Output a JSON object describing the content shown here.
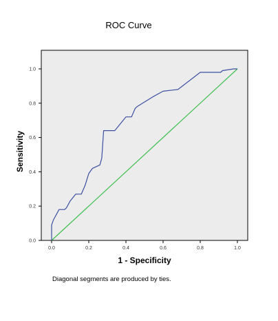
{
  "chart_data": {
    "type": "line",
    "title": "ROC Curve",
    "xlabel": "1 - Specificity",
    "ylabel": "Sensitivity",
    "xlim": [
      0,
      1
    ],
    "ylim": [
      0,
      1
    ],
    "x_ticks": [
      "0.0",
      "0.2",
      "0.4",
      "0.6",
      "0.8",
      "1.0"
    ],
    "y_ticks": [
      "0.0",
      "0.2",
      "0.4",
      "0.6",
      "0.8",
      "1.0"
    ],
    "grid": false,
    "legend": "none",
    "footnote": "Diagonal segments are produced by ties.",
    "series": [
      {
        "color": "#3b4fa0",
        "x": [
          0.0,
          0.0,
          0.01,
          0.04,
          0.07,
          0.08,
          0.1,
          0.13,
          0.16,
          0.18,
          0.2,
          0.22,
          0.24,
          0.26,
          0.27,
          0.28,
          0.34,
          0.4,
          0.43,
          0.45,
          0.46,
          0.55,
          0.6,
          0.68,
          0.8,
          0.91,
          0.92,
          0.98,
          1.0
        ],
        "y": [
          0.0,
          0.09,
          0.12,
          0.18,
          0.18,
          0.19,
          0.23,
          0.27,
          0.27,
          0.32,
          0.39,
          0.42,
          0.43,
          0.44,
          0.48,
          0.64,
          0.64,
          0.72,
          0.72,
          0.77,
          0.78,
          0.84,
          0.87,
          0.88,
          0.98,
          0.98,
          0.99,
          1.0,
          1.0
        ]
      },
      {
        "color": "#3fbf4f",
        "x": [
          0,
          1
        ],
        "y": [
          0,
          1
        ]
      }
    ]
  }
}
